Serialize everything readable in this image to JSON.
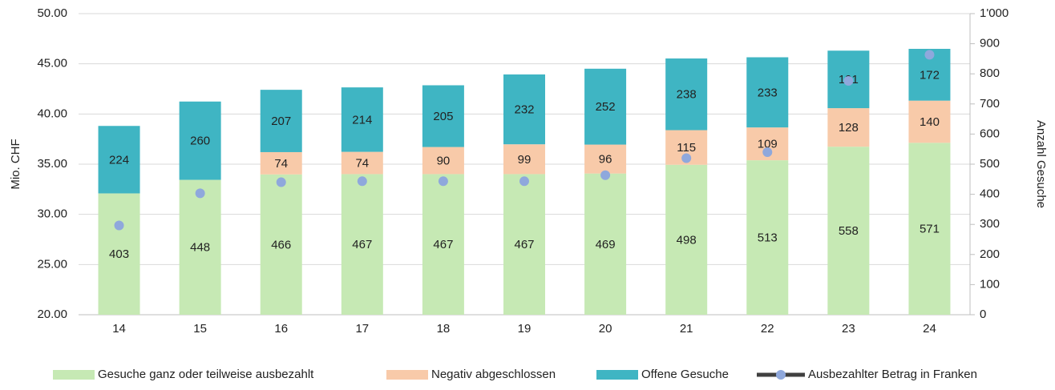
{
  "chart_data": {
    "type": "bar",
    "stacked": true,
    "categories": [
      "14",
      "15",
      "16",
      "17",
      "18",
      "19",
      "20",
      "21",
      "22",
      "23",
      "24"
    ],
    "ylabel": "Mio. CHF",
    "y2label": "Anzahl Gesuche",
    "ylim": [
      20,
      50
    ],
    "yticks": [
      {
        "value": 20,
        "label": "20.00"
      },
      {
        "value": 25,
        "label": "25.00"
      },
      {
        "value": 30,
        "label": "30.00"
      },
      {
        "value": 35,
        "label": "35.00"
      },
      {
        "value": 40,
        "label": "40.00"
      },
      {
        "value": 45,
        "label": "45.00"
      },
      {
        "value": 50,
        "label": "50.00"
      }
    ],
    "y2lim": [
      0,
      1000
    ],
    "y2ticks": [
      0,
      100,
      200,
      300,
      400,
      500,
      600,
      700,
      800,
      900,
      {
        "value": 1000,
        "label": "1'000"
      }
    ],
    "series": [
      {
        "name": "Gesuche ganz oder teilweise ausbezahlt",
        "color": "#c6e9b4",
        "axis": "y2",
        "values": [
          403,
          448,
          466,
          467,
          467,
          467,
          469,
          498,
          513,
          558,
          571
        ]
      },
      {
        "name": "Negativ abgeschlossen",
        "color": "#f8caa9",
        "axis": "y2",
        "values": [
          null,
          null,
          74,
          74,
          90,
          99,
          96,
          115,
          109,
          128,
          140
        ]
      },
      {
        "name": "Offene Gesuche",
        "color": "#3fb5c3",
        "axis": "y2",
        "values": [
          224,
          260,
          207,
          214,
          205,
          232,
          252,
          238,
          233,
          191,
          172
        ]
      },
      {
        "name": "Ausbezahlter Betrag in Franken",
        "color": "#404040",
        "marker_color": "#8fa8dc",
        "type": "line",
        "axis": "y",
        "values": [
          28.9,
          32.1,
          33.2,
          33.3,
          33.3,
          33.3,
          33.9,
          35.6,
          36.2,
          43.3,
          45.9
        ]
      }
    ]
  }
}
